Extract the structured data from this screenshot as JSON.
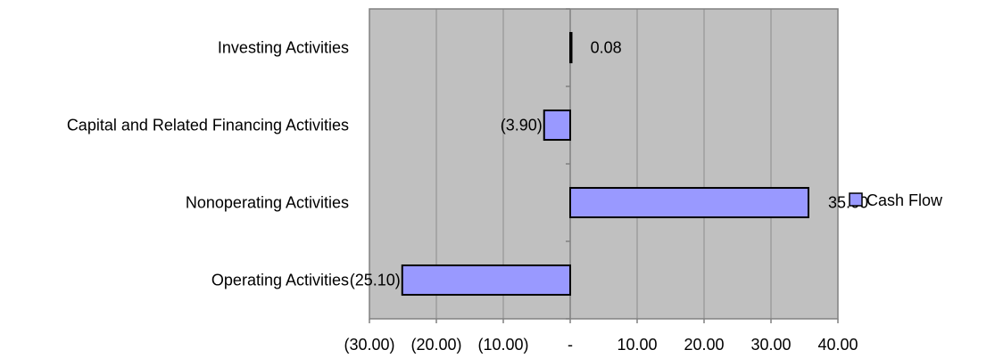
{
  "chart_data": {
    "type": "bar",
    "orientation": "horizontal",
    "categories": [
      "Investing Activities",
      "Capital and Related Financing Activities",
      "Nonoperating Activities",
      "Operating Activities"
    ],
    "series": [
      {
        "name": "Cash Flow",
        "values": [
          0.08,
          -3.9,
          35.6,
          -25.1
        ],
        "data_labels": [
          "0.08",
          "(3.90)",
          "35.60",
          "(25.10)"
        ],
        "color": "#9999ff"
      }
    ],
    "xlim": [
      -30,
      40
    ],
    "x_ticks": [
      -30,
      -20,
      -10,
      0,
      10,
      20,
      30,
      40
    ],
    "x_tick_labels": [
      "(30.00)",
      "(20.00)",
      "(10.00)",
      "-",
      "10.00",
      "20.00",
      "30.00",
      "40.00"
    ],
    "title": "",
    "xlabel": "",
    "ylabel": "",
    "grid": true,
    "legend": {
      "position": "right",
      "entries": [
        "Cash Flow"
      ]
    },
    "plot_background": "#c0c0c0",
    "gridline_color": "#8c8c8c",
    "bar_outline_color": "#000000"
  }
}
